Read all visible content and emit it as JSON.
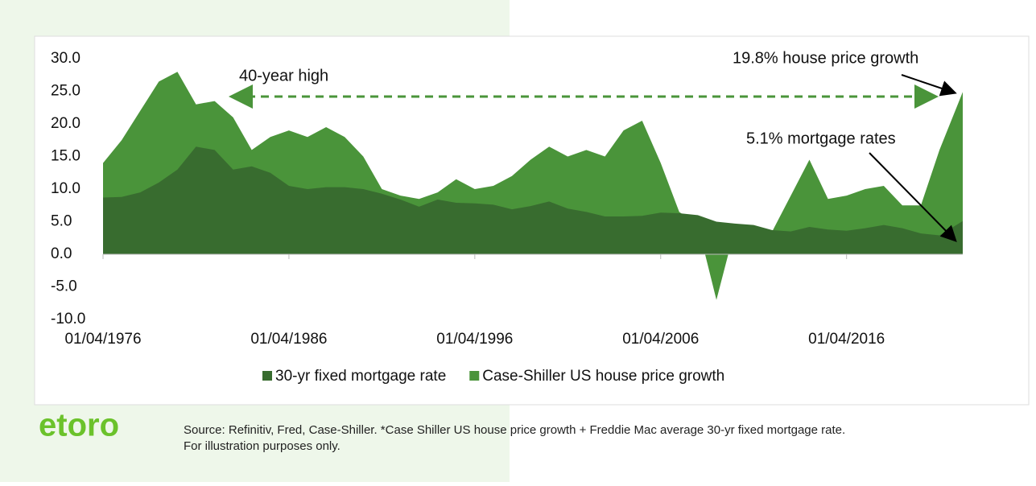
{
  "chart_data": {
    "type": "stacked-area",
    "x": [
      1976,
      1977,
      1978,
      1979,
      1980,
      1981,
      1982,
      1983,
      1984,
      1985,
      1986,
      1987,
      1988,
      1989,
      1990,
      1991,
      1992,
      1993,
      1994,
      1995,
      1996,
      1997,
      1998,
      1999,
      2000,
      2001,
      2002,
      2003,
      2004,
      2005,
      2006,
      2007,
      2008,
      2009,
      2010,
      2011,
      2012,
      2013,
      2014,
      2015,
      2016,
      2017,
      2018,
      2019,
      2020,
      2021,
      2022.25
    ],
    "xlim": [
      1976,
      2022.25
    ],
    "xticks": [
      {
        "value": 1976,
        "label": "01/04/1976"
      },
      {
        "value": 1986,
        "label": "01/04/1986"
      },
      {
        "value": 1996,
        "label": "01/04/1996"
      },
      {
        "value": 2006,
        "label": "01/04/2006"
      },
      {
        "value": 2016,
        "label": "01/04/2016"
      }
    ],
    "ylim": [
      -10,
      30
    ],
    "yticks": [
      {
        "value": 30,
        "label": "30.0"
      },
      {
        "value": 25,
        "label": "25.0"
      },
      {
        "value": 20,
        "label": "20.0"
      },
      {
        "value": 15,
        "label": "15.0"
      },
      {
        "value": 10,
        "label": "10.0"
      },
      {
        "value": 5,
        "label": "5.0"
      },
      {
        "value": 0,
        "label": "0.0"
      },
      {
        "value": -5,
        "label": "-5.0"
      },
      {
        "value": -10,
        "label": "-10.0"
      }
    ],
    "series": [
      {
        "name": "30-yr fixed mortgage rate",
        "color": "#386c2f",
        "values": [
          8.7,
          8.8,
          9.5,
          11,
          13,
          16.5,
          16,
          13,
          13.5,
          12.5,
          10.5,
          10,
          10.3,
          10.3,
          10,
          9.3,
          8.4,
          7.3,
          8.4,
          7.9,
          7.8,
          7.6,
          6.9,
          7.4,
          8.1,
          7.0,
          6.5,
          5.8,
          5.8,
          5.9,
          6.4,
          6.3,
          6.0,
          5.0,
          4.7,
          4.5,
          3.7,
          3.5,
          4.2,
          3.8,
          3.6,
          4.0,
          4.5,
          4.0,
          3.2,
          2.9,
          5.1
        ]
      },
      {
        "name": "Case-Shiller US house price growth",
        "color": "#4a943a",
        "values": [
          5.3,
          8.7,
          12.5,
          15.5,
          15,
          6.5,
          7.5,
          8,
          2.5,
          5.5,
          8.5,
          8,
          9.2,
          7.7,
          5,
          0.7,
          0.6,
          1.2,
          1.1,
          3.6,
          2.2,
          2.9,
          5.1,
          7.1,
          8.4,
          8,
          9.5,
          9.2,
          13.2,
          14.6,
          7.6,
          0.2,
          -1.5,
          -12,
          -0.7,
          -2.5,
          -0.2,
          5.5,
          10.3,
          4.7,
          5.4,
          6,
          6,
          3.5,
          4.3,
          13.1,
          19.8
        ]
      }
    ],
    "annotations": [
      "40-year high",
      "19.8% house price growth",
      "5.1% mortgage rates"
    ]
  },
  "footer": {
    "logo": "etoro",
    "source": [
      "Source: Refinitiv, Fred, Case-Shiller. *Case Shiller US house price growth + Freddie Mac average 30-yr fixed mortgage rate.",
      "For illustration purposes only."
    ]
  }
}
